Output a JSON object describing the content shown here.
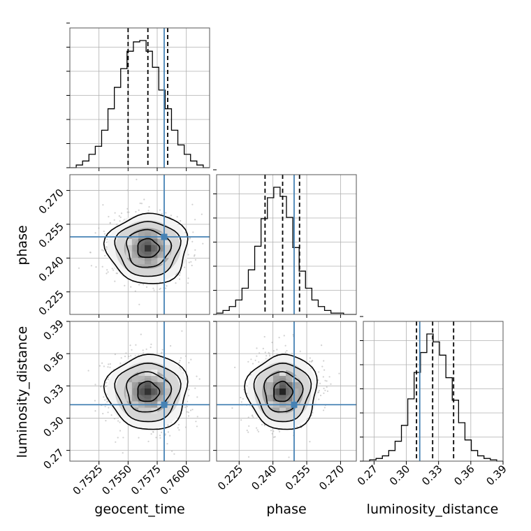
{
  "chart_data": {
    "type": "corner",
    "parameters": [
      "geocent_time",
      "phase",
      "luminosity_distance"
    ],
    "colors": {
      "truth": "#4682b4",
      "hist": "#000000",
      "grid": "#b0b0b0",
      "points": "#bdbdbd"
    },
    "axes": {
      "geocent_time": {
        "range": [
          0.75,
          0.762
        ],
        "ticks": [
          0.7525,
          0.755,
          0.7575,
          0.76
        ],
        "tick_labels": [
          "0.7525",
          "0.7550",
          "0.7575",
          "0.7600"
        ]
      },
      "phase": {
        "range": [
          0.215,
          0.277
        ],
        "ticks": [
          0.225,
          0.24,
          0.255,
          0.27
        ],
        "tick_labels": [
          "0.225",
          "0.240",
          "0.255",
          "0.270"
        ]
      },
      "luminosity_distance": {
        "range": [
          0.26,
          0.39
        ],
        "ticks": [
          0.27,
          0.3,
          0.33,
          0.36,
          0.39
        ],
        "tick_labels": [
          "0.27",
          "0.30",
          "0.33",
          "0.36",
          "0.39"
        ]
      }
    },
    "truths": {
      "geocent_time": 0.7581,
      "phase": 0.2494,
      "luminosity_distance": 0.3125
    },
    "quantiles": {
      "geocent_time": [
        0.755,
        0.7567,
        0.7584
      ],
      "phase": [
        0.2365,
        0.2443,
        0.2518
      ],
      "luminosity_distance": [
        0.3095,
        0.3245,
        0.344
      ]
    },
    "histograms": {
      "geocent_time": {
        "edges_range": [
          0.75,
          0.762
        ],
        "counts": [
          0,
          2,
          5,
          10,
          16,
          28,
          44,
          60,
          74,
          87,
          94,
          95,
          87,
          75,
          58,
          44,
          28,
          17,
          10,
          5,
          2,
          0
        ]
      },
      "phase": {
        "edges_range": [
          0.215,
          0.277
        ],
        "counts": [
          1,
          3,
          6,
          11,
          20,
          34,
          52,
          73,
          89,
          97,
          90,
          74,
          51,
          33,
          20,
          11,
          6,
          3,
          1,
          1,
          0,
          0
        ]
      },
      "luminosity_distance": {
        "edges_range": [
          0.26,
          0.39
        ],
        "counts": [
          0,
          1,
          2,
          4,
          8,
          15,
          27,
          47,
          67,
          82,
          96,
          90,
          80,
          63,
          46,
          29,
          16,
          8,
          4,
          2,
          1,
          0
        ]
      }
    },
    "means": {
      "geocent_time": 0.7567,
      "phase": 0.2443,
      "luminosity_distance": 0.3245
    },
    "sigmas": {
      "geocent_time": 0.0017,
      "phase": 0.0076,
      "luminosity_distance": 0.017
    }
  }
}
